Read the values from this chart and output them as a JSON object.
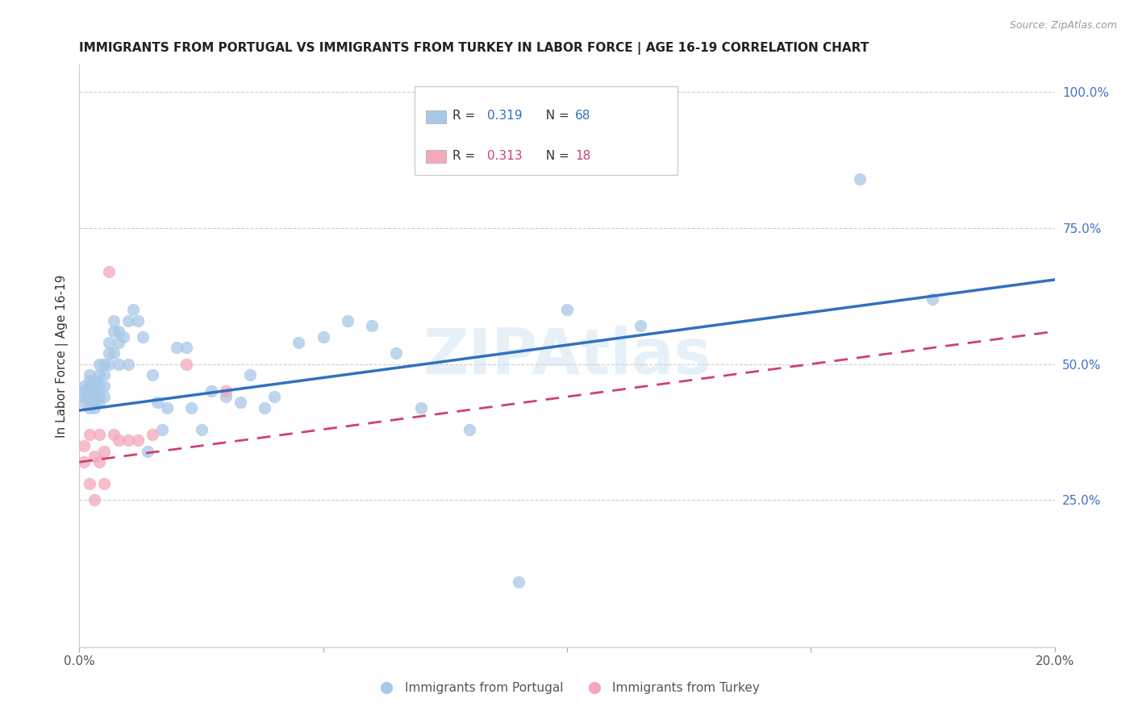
{
  "title": "IMMIGRANTS FROM PORTUGAL VS IMMIGRANTS FROM TURKEY IN LABOR FORCE | AGE 16-19 CORRELATION CHART",
  "source": "Source: ZipAtlas.com",
  "ylabel": "In Labor Force | Age 16-19",
  "xlim": [
    0.0,
    0.2
  ],
  "ylim": [
    -0.02,
    1.05
  ],
  "blue_color": "#a8c8e8",
  "pink_color": "#f4a8b8",
  "blue_line_color": "#3070c0",
  "pink_line_color": "#d04070",
  "grid_color": "#cccccc",
  "watermark": "ZIPAtlas",
  "portugal_x": [
    0.001,
    0.001,
    0.001,
    0.001,
    0.002,
    0.002,
    0.002,
    0.002,
    0.002,
    0.002,
    0.002,
    0.003,
    0.003,
    0.003,
    0.003,
    0.003,
    0.003,
    0.004,
    0.004,
    0.004,
    0.004,
    0.004,
    0.005,
    0.005,
    0.005,
    0.005,
    0.006,
    0.006,
    0.006,
    0.007,
    0.007,
    0.007,
    0.008,
    0.008,
    0.008,
    0.009,
    0.01,
    0.01,
    0.011,
    0.012,
    0.013,
    0.014,
    0.015,
    0.016,
    0.017,
    0.018,
    0.02,
    0.022,
    0.023,
    0.025,
    0.027,
    0.03,
    0.033,
    0.035,
    0.038,
    0.04,
    0.045,
    0.05,
    0.055,
    0.06,
    0.065,
    0.07,
    0.08,
    0.09,
    0.1,
    0.115,
    0.16,
    0.175
  ],
  "portugal_y": [
    0.43,
    0.44,
    0.45,
    0.46,
    0.42,
    0.43,
    0.44,
    0.45,
    0.46,
    0.47,
    0.48,
    0.42,
    0.43,
    0.44,
    0.45,
    0.46,
    0.47,
    0.43,
    0.44,
    0.46,
    0.48,
    0.5,
    0.44,
    0.46,
    0.48,
    0.5,
    0.5,
    0.52,
    0.54,
    0.52,
    0.56,
    0.58,
    0.5,
    0.54,
    0.56,
    0.55,
    0.5,
    0.58,
    0.6,
    0.58,
    0.55,
    0.34,
    0.48,
    0.43,
    0.38,
    0.42,
    0.53,
    0.53,
    0.42,
    0.38,
    0.45,
    0.44,
    0.43,
    0.48,
    0.42,
    0.44,
    0.54,
    0.55,
    0.58,
    0.57,
    0.52,
    0.42,
    0.38,
    0.1,
    0.6,
    0.57,
    0.84,
    0.62
  ],
  "turkey_x": [
    0.001,
    0.001,
    0.002,
    0.002,
    0.003,
    0.003,
    0.004,
    0.004,
    0.005,
    0.005,
    0.006,
    0.007,
    0.008,
    0.01,
    0.012,
    0.015,
    0.022,
    0.03
  ],
  "turkey_y": [
    0.35,
    0.32,
    0.37,
    0.28,
    0.33,
    0.25,
    0.32,
    0.37,
    0.34,
    0.28,
    0.67,
    0.37,
    0.36,
    0.36,
    0.36,
    0.37,
    0.5,
    0.45
  ],
  "blue_trend_x0": 0.0,
  "blue_trend_y0": 0.415,
  "blue_trend_x1": 0.2,
  "blue_trend_y1": 0.655,
  "pink_trend_x0": 0.0,
  "pink_trend_y0": 0.32,
  "pink_trend_x1": 0.2,
  "pink_trend_y1": 0.56
}
